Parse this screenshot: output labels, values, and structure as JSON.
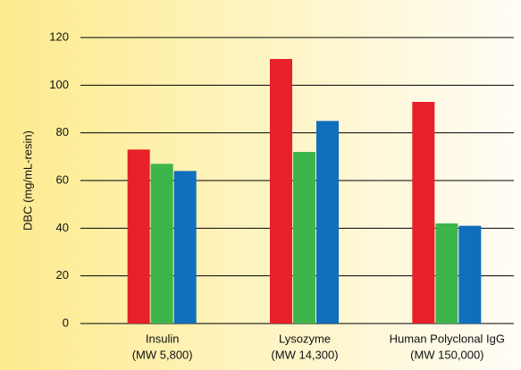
{
  "chart_data": {
    "type": "bar",
    "y_label": "DBC (mg/mL-resin)",
    "categories": [
      [
        "Insulin",
        "(MW 5,800)"
      ],
      [
        "Lysozyme",
        "(MW 14,300)"
      ],
      [
        "Human Polyclonal IgG",
        "(MW 150,000)"
      ]
    ],
    "series": [
      {
        "color": "#e8202a",
        "values": [
          73,
          111,
          93
        ]
      },
      {
        "color": "#3db54a",
        "values": [
          67,
          72,
          42
        ]
      },
      {
        "color": "#0f6fbd",
        "values": [
          64,
          85,
          41
        ]
      }
    ],
    "ylim": [
      0,
      120
    ],
    "yticks": [
      0,
      20,
      40,
      60,
      80,
      100,
      120
    ],
    "grid": true
  }
}
